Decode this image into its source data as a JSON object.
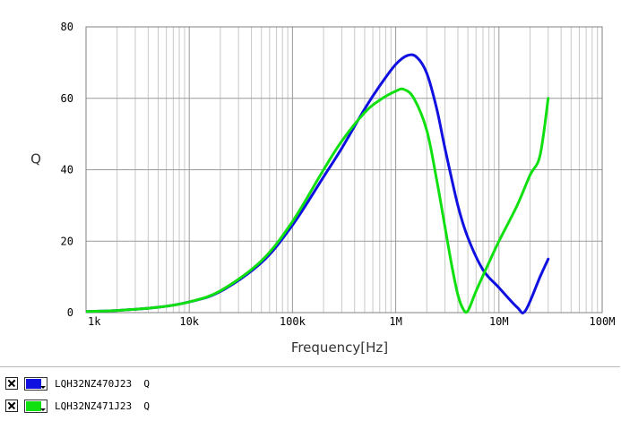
{
  "chart_data": {
    "type": "line",
    "title": "",
    "xlabel": "Frequency[Hz]",
    "ylabel": "Q",
    "x_scale": "log",
    "xlim": [
      1000,
      100000000
    ],
    "ylim": [
      0,
      80
    ],
    "grid": true,
    "x_ticks": [
      1000,
      10000,
      100000,
      1000000,
      10000000,
      100000000
    ],
    "x_tick_labels": [
      "1k",
      "10k",
      "100k",
      "1M",
      "10M",
      "100M"
    ],
    "y_ticks": [
      0,
      20,
      40,
      60,
      80
    ],
    "y_tick_labels": [
      "0",
      "20",
      "40",
      "60",
      "80"
    ],
    "legend_position": "bottom",
    "series": [
      {
        "name": "LQH32NZ470J23  Q",
        "color": "#1010e0",
        "x": [
          1000,
          2000,
          5000,
          10000,
          20000,
          50000,
          100000,
          200000,
          300000,
          500000,
          700000,
          1000000,
          1300000,
          1600000,
          2000000,
          2500000,
          3000000,
          4000000,
          5000000,
          7000000,
          10000000,
          15000000,
          18000000,
          25000000,
          30000000
        ],
        "y": [
          0.3,
          0.6,
          1.5,
          3.0,
          5.9,
          14.0,
          24.5,
          38.0,
          46.0,
          57.0,
          63.5,
          69.5,
          72.0,
          71.5,
          67.0,
          57.0,
          46.0,
          30.0,
          21.0,
          12.0,
          7.0,
          1.5,
          0.5,
          10.0,
          15.0
        ]
      },
      {
        "name": "LQH32NZ471J23  Q",
        "color": "#10e010",
        "x": [
          1000,
          2000,
          5000,
          10000,
          20000,
          50000,
          100000,
          200000,
          300000,
          500000,
          700000,
          1000000,
          1200000,
          1500000,
          2000000,
          2500000,
          3000000,
          3500000,
          4000000,
          4500000,
          5000000,
          6000000,
          8000000,
          10000000,
          15000000,
          20000000,
          25000000,
          30000000
        ],
        "y": [
          0.3,
          0.6,
          1.5,
          3.0,
          6.1,
          14.5,
          25.5,
          40.0,
          48.0,
          56.0,
          59.5,
          62.0,
          62.5,
          60.0,
          51.0,
          37.0,
          24.0,
          13.0,
          5.0,
          1.0,
          0.5,
          6.0,
          14.0,
          20.0,
          30.0,
          38.5,
          44.0,
          60.0
        ]
      }
    ]
  },
  "legend": {
    "items": [
      {
        "label": "LQH32NZ470J23  Q",
        "color": "#1010e0"
      },
      {
        "label": "LQH32NZ471J23  Q",
        "color": "#10e010"
      }
    ]
  }
}
